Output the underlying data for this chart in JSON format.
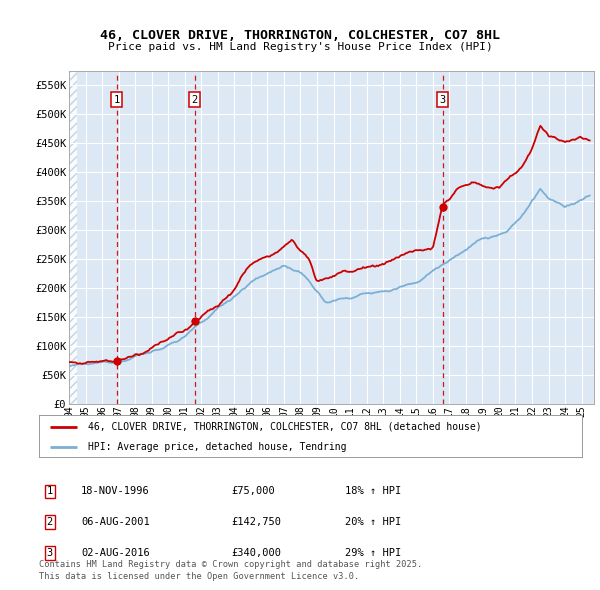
{
  "title": "46, CLOVER DRIVE, THORRINGTON, COLCHESTER, CO7 8HL",
  "subtitle": "Price paid vs. HM Land Registry's House Price Index (HPI)",
  "ylim": [
    0,
    575000
  ],
  "yticks": [
    0,
    50000,
    100000,
    150000,
    200000,
    250000,
    300000,
    350000,
    400000,
    450000,
    500000,
    550000
  ],
  "ytick_labels": [
    "£0",
    "£50K",
    "£100K",
    "£150K",
    "£200K",
    "£250K",
    "£300K",
    "£350K",
    "£400K",
    "£450K",
    "£500K",
    "£550K"
  ],
  "xlim_start": 1994.0,
  "xlim_end": 2025.75,
  "plot_bg_color": "#dce9f5",
  "hatch_color": "#b8ccd8",
  "grid_color": "#ffffff",
  "sale_dates": [
    1996.88,
    2001.59,
    2016.59
  ],
  "sale_prices": [
    75000,
    142750,
    340000
  ],
  "sale_labels": [
    "1",
    "2",
    "3"
  ],
  "legend_line1": "46, CLOVER DRIVE, THORRINGTON, COLCHESTER, CO7 8HL (detached house)",
  "legend_line2": "HPI: Average price, detached house, Tendring",
  "table_entries": [
    {
      "num": "1",
      "date": "18-NOV-1996",
      "price": "£75,000",
      "change": "18% ↑ HPI"
    },
    {
      "num": "2",
      "date": "06-AUG-2001",
      "price": "£142,750",
      "change": "20% ↑ HPI"
    },
    {
      "num": "3",
      "date": "02-AUG-2016",
      "price": "£340,000",
      "change": "29% ↑ HPI"
    }
  ],
  "footer": "Contains HM Land Registry data © Crown copyright and database right 2025.\nThis data is licensed under the Open Government Licence v3.0.",
  "red_color": "#cc0000",
  "blue_color": "#7bafd4",
  "dashed_color": "#cc0000",
  "num_points": 380
}
